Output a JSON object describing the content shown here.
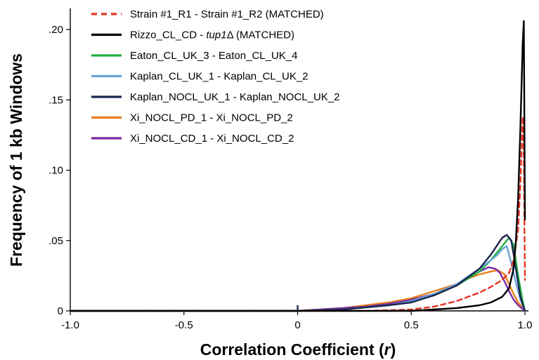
{
  "chart_data": {
    "type": "line",
    "title": "",
    "xlabel": "Correlation Coefficient (r)",
    "xlabel_main": "Correlation Coefficient (",
    "xlabel_italic": "r",
    "xlabel_close": ")",
    "ylabel": "Frequency of 1 kb Windows",
    "xlim": [
      -1.0,
      1.0
    ],
    "ylim": [
      0,
      0.215
    ],
    "xticks": [
      -1.0,
      -0.5,
      0,
      0.5,
      1.0
    ],
    "xtick_labels": [
      "-1.0",
      "-0.5",
      "0",
      "0.5",
      "1.0"
    ],
    "yticks": [
      0,
      0.05,
      0.1,
      0.15,
      0.2
    ],
    "ytick_labels": [
      "0",
      ".05",
      ".10",
      ".15",
      ".20"
    ],
    "grid": false,
    "legend_position": "top-left",
    "series": [
      {
        "name": "Strain #1_R1 - Strain #1_R2 (MATCHED)",
        "color": "#e63323",
        "dashed": true,
        "points": [
          [
            -1.0,
            0
          ],
          [
            0.3,
            0
          ],
          [
            0.5,
            0.001
          ],
          [
            0.6,
            0.003
          ],
          [
            0.7,
            0.007
          ],
          [
            0.8,
            0.013
          ],
          [
            0.85,
            0.017
          ],
          [
            0.9,
            0.022
          ],
          [
            0.93,
            0.027
          ],
          [
            0.95,
            0.036
          ],
          [
            0.97,
            0.058
          ],
          [
            0.98,
            0.09
          ],
          [
            0.99,
            0.138
          ],
          [
            0.995,
            0.11
          ],
          [
            1.0,
            0.022
          ]
        ]
      },
      {
        "name": "Rizzo_CL_CD - tup1Δ (MATCHED)",
        "name_parts": [
          "Rizzo_CL_CD - ",
          "tup1",
          "Δ (MATCHED)"
        ],
        "color": "#000000",
        "dashed": false,
        "points": [
          [
            -1.0,
            0
          ],
          [
            0.5,
            0
          ],
          [
            0.6,
            0.001
          ],
          [
            0.7,
            0.002
          ],
          [
            0.8,
            0.004
          ],
          [
            0.85,
            0.006
          ],
          [
            0.9,
            0.01
          ],
          [
            0.93,
            0.016
          ],
          [
            0.95,
            0.03
          ],
          [
            0.96,
            0.05
          ],
          [
            0.97,
            0.08
          ],
          [
            0.98,
            0.13
          ],
          [
            0.99,
            0.19
          ],
          [
            0.995,
            0.206
          ],
          [
            1.0,
            0.065
          ]
        ]
      },
      {
        "name": "Eaton_CL_UK_3 - Eaton_CL_UK_4",
        "color": "#1fb040",
        "dashed": false,
        "points": [
          [
            -1.0,
            0
          ],
          [
            0.0,
            0
          ],
          [
            0.2,
            0.001
          ],
          [
            0.4,
            0.004
          ],
          [
            0.5,
            0.007
          ],
          [
            0.6,
            0.011
          ],
          [
            0.7,
            0.018
          ],
          [
            0.8,
            0.028
          ],
          [
            0.85,
            0.036
          ],
          [
            0.9,
            0.046
          ],
          [
            0.93,
            0.052
          ],
          [
            0.95,
            0.047
          ],
          [
            0.97,
            0.025
          ],
          [
            0.99,
            0.007
          ],
          [
            1.0,
            0
          ]
        ]
      },
      {
        "name": "Kaplan_CL_UK_1 - Kaplan_CL_UK_2",
        "color": "#6aa2d4",
        "dashed": false,
        "points": [
          [
            -1.0,
            0
          ],
          [
            0.0,
            0
          ],
          [
            0.2,
            0.001
          ],
          [
            0.4,
            0.004
          ],
          [
            0.5,
            0.007
          ],
          [
            0.6,
            0.012
          ],
          [
            0.7,
            0.019
          ],
          [
            0.8,
            0.03
          ],
          [
            0.85,
            0.036
          ],
          [
            0.88,
            0.04
          ],
          [
            0.9,
            0.044
          ],
          [
            0.92,
            0.046
          ],
          [
            0.94,
            0.034
          ],
          [
            0.96,
            0.02
          ],
          [
            0.98,
            0.008
          ],
          [
            1.0,
            0
          ]
        ]
      },
      {
        "name": "Kaplan_NOCL_UK_1 - Kaplan_NOCL_UK_2",
        "color": "#1a2650",
        "dashed": false,
        "points": [
          [
            -1.0,
            0
          ],
          [
            0.0,
            0
          ],
          [
            0.2,
            0.001
          ],
          [
            0.4,
            0.004
          ],
          [
            0.5,
            0.006
          ],
          [
            0.6,
            0.011
          ],
          [
            0.7,
            0.018
          ],
          [
            0.8,
            0.03
          ],
          [
            0.85,
            0.04
          ],
          [
            0.9,
            0.052
          ],
          [
            0.92,
            0.054
          ],
          [
            0.94,
            0.05
          ],
          [
            0.96,
            0.03
          ],
          [
            0.98,
            0.01
          ],
          [
            1.0,
            0
          ]
        ]
      },
      {
        "name": "Xi_NOCL_PD_1 - Xi_NOCL_PD_2",
        "color": "#e8801a",
        "dashed": false,
        "points": [
          [
            -1.0,
            0
          ],
          [
            0.0,
            0
          ],
          [
            0.2,
            0.002
          ],
          [
            0.3,
            0.004
          ],
          [
            0.4,
            0.006
          ],
          [
            0.5,
            0.009
          ],
          [
            0.6,
            0.014
          ],
          [
            0.7,
            0.019
          ],
          [
            0.75,
            0.023
          ],
          [
            0.8,
            0.026
          ],
          [
            0.85,
            0.028
          ],
          [
            0.88,
            0.029
          ],
          [
            0.91,
            0.026
          ],
          [
            0.93,
            0.019
          ],
          [
            0.95,
            0.012
          ],
          [
            0.97,
            0.006
          ],
          [
            1.0,
            0
          ]
        ]
      },
      {
        "name": "Xi_NOCL_CD_1 - Xi_NOCL_CD_2",
        "color": "#7a2aa8",
        "dashed": false,
        "points": [
          [
            -1.0,
            0
          ],
          [
            0.0,
            0
          ],
          [
            0.2,
            0.002
          ],
          [
            0.3,
            0.003
          ],
          [
            0.4,
            0.005
          ],
          [
            0.5,
            0.008
          ],
          [
            0.6,
            0.012
          ],
          [
            0.7,
            0.018
          ],
          [
            0.75,
            0.023
          ],
          [
            0.8,
            0.028
          ],
          [
            0.84,
            0.031
          ],
          [
            0.87,
            0.03
          ],
          [
            0.89,
            0.027
          ],
          [
            0.91,
            0.021
          ],
          [
            0.93,
            0.014
          ],
          [
            0.95,
            0.008
          ],
          [
            0.97,
            0.004
          ],
          [
            1.0,
            0
          ]
        ]
      }
    ],
    "spike_near_zero": {
      "x": 0.0,
      "y": 0.004
    }
  }
}
